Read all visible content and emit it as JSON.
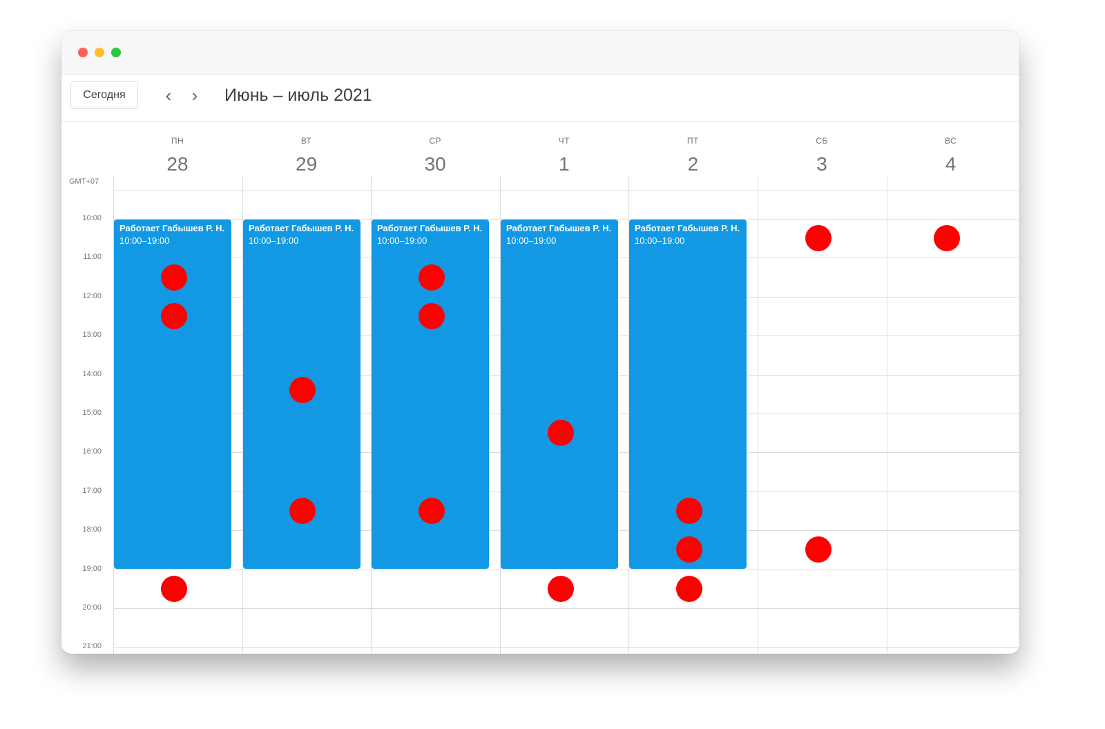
{
  "window": {
    "controls": [
      "close",
      "minimize",
      "maximize"
    ]
  },
  "toolbar": {
    "today_label": "Сегодня",
    "prev_icon": "chevron-left-icon",
    "next_icon": "chevron-right-icon",
    "period_title": "Июнь – июль 2021"
  },
  "calendar": {
    "timezone_label": "GMT+07",
    "days": [
      {
        "dow": "ПН",
        "date": "28"
      },
      {
        "dow": "ВТ",
        "date": "29"
      },
      {
        "dow": "СР",
        "date": "30"
      },
      {
        "dow": "ЧТ",
        "date": "1"
      },
      {
        "dow": "ПТ",
        "date": "2"
      },
      {
        "dow": "СБ",
        "date": "3"
      },
      {
        "dow": "ВС",
        "date": "4"
      }
    ],
    "hours": [
      "10:00",
      "11:00",
      "12:00",
      "13:00",
      "14:00",
      "15:00",
      "16:00",
      "17:00",
      "18:00",
      "19:00",
      "20:00",
      "21:00"
    ],
    "events": [
      {
        "day": 0,
        "title": "Работает Габышев Р. Н.",
        "time": "10:00–19:00",
        "start_hour": 10,
        "end_hour": 19,
        "color": "#1399e3"
      },
      {
        "day": 1,
        "title": "Работает Габышев Р. Н.",
        "time": "10:00–19:00",
        "start_hour": 10,
        "end_hour": 19,
        "color": "#1399e3"
      },
      {
        "day": 2,
        "title": "Работает Габышев Р. Н.",
        "time": "10:00–19:00",
        "start_hour": 10,
        "end_hour": 19,
        "color": "#1399e3"
      },
      {
        "day": 3,
        "title": "Работает Габышев Р. Н.",
        "time": "10:00–19:00",
        "start_hour": 10,
        "end_hour": 19,
        "color": "#1399e3"
      },
      {
        "day": 4,
        "title": "Работает Габышев Р. Н.",
        "time": "10:00–19:00",
        "start_hour": 10,
        "end_hour": 19,
        "color": "#1399e3"
      }
    ],
    "markers_color": "#ff0000",
    "markers": [
      {
        "day": 0,
        "hour": 11.5
      },
      {
        "day": 0,
        "hour": 12.5
      },
      {
        "day": 0,
        "hour": 19.5
      },
      {
        "day": 1,
        "hour": 14.4
      },
      {
        "day": 1,
        "hour": 17.5
      },
      {
        "day": 2,
        "hour": 11.5
      },
      {
        "day": 2,
        "hour": 12.5
      },
      {
        "day": 2,
        "hour": 17.5
      },
      {
        "day": 3,
        "hour": 15.5
      },
      {
        "day": 3,
        "hour": 19.5
      },
      {
        "day": 4,
        "hour": 17.5
      },
      {
        "day": 4,
        "hour": 18.5
      },
      {
        "day": 4,
        "hour": 19.5
      },
      {
        "day": 5,
        "hour": 10.5
      },
      {
        "day": 5,
        "hour": 18.5
      },
      {
        "day": 6,
        "hour": 10.5
      }
    ]
  }
}
